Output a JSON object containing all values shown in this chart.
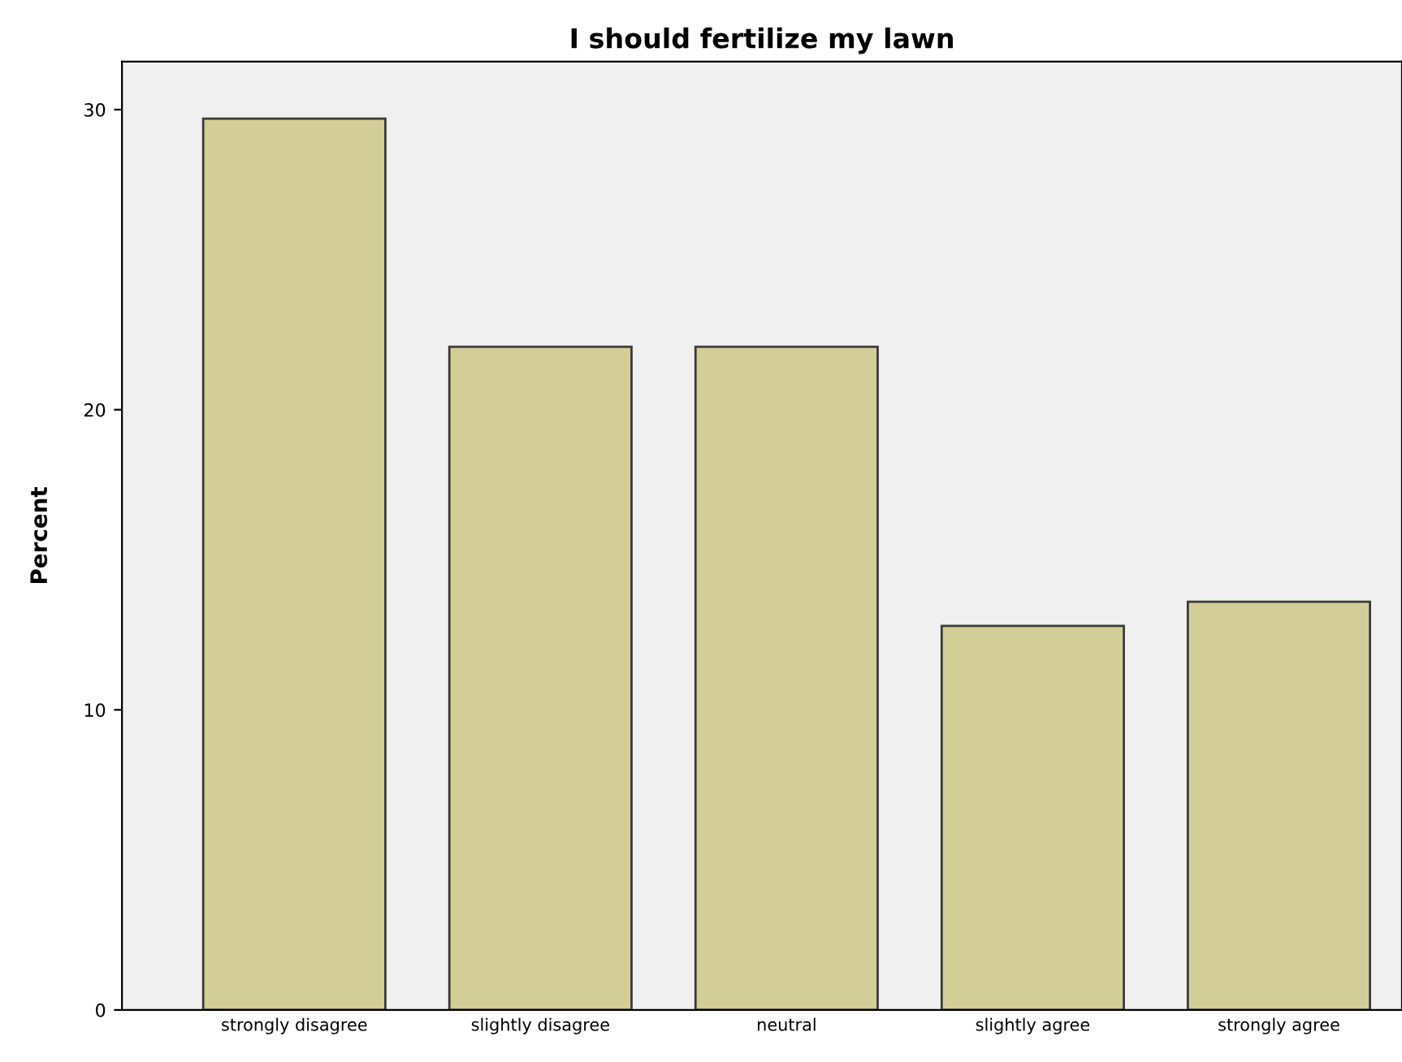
{
  "chart_data": {
    "type": "bar",
    "title": "I should fertilize my lawn",
    "ylabel": "Percent",
    "categories": [
      "strongly disagree",
      "slightly disagree",
      "neutral",
      "slightly agree",
      "strongly agree"
    ],
    "values": [
      29.7,
      22.1,
      22.1,
      12.8,
      13.6
    ],
    "color": "#d3ce98",
    "ylim": [
      0,
      31.6
    ],
    "yticks": [
      0,
      10,
      20,
      30
    ],
    "grid": false,
    "legend": false
  }
}
